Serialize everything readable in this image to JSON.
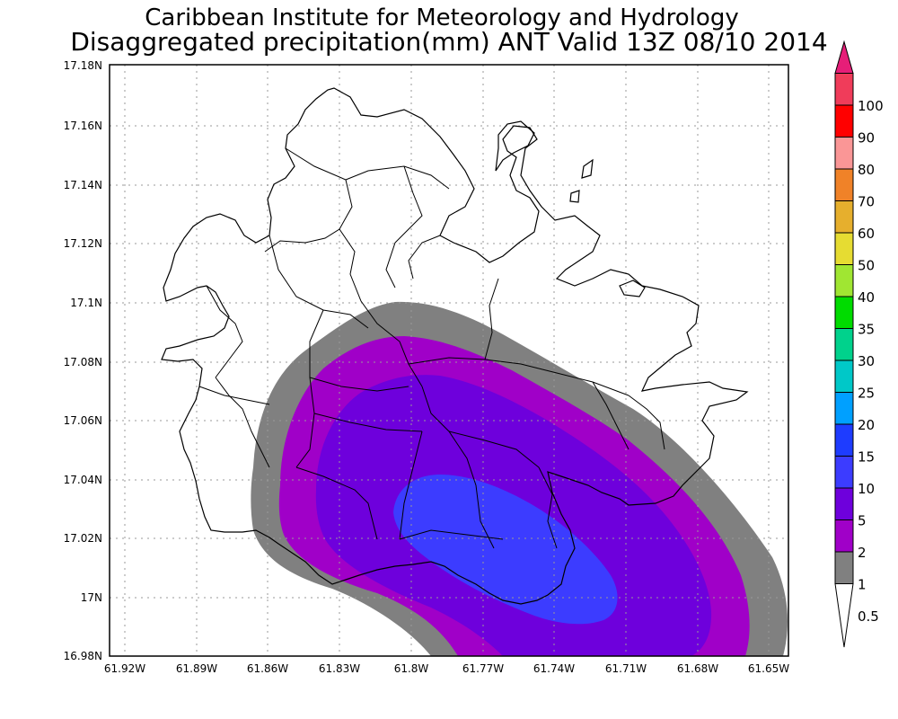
{
  "header": {
    "institute": "Caribbean Institute for Meteorology and Hydrology",
    "product": "Disaggregated precipitation(mm) ANT Valid 13Z 08/10 2014"
  },
  "map": {
    "lat_labels": [
      "17.18N",
      "17.16N",
      "17.14N",
      "17.12N",
      "17.1N",
      "17.08N",
      "17.06N",
      "17.04N",
      "17.02N",
      "17N",
      "16.98N"
    ],
    "lon_labels": [
      "61.92W",
      "61.89W",
      "61.86W",
      "61.83W",
      "61.8W",
      "61.77W",
      "61.74W",
      "61.71W",
      "61.68W",
      "61.65W"
    ],
    "lat_range": [
      16.98,
      17.18
    ],
    "lon_range": [
      -61.925,
      -61.64
    ],
    "grid": "dotted"
  },
  "colorbar": {
    "levels": [
      {
        "label": "0.5",
        "color": "#ffffff"
      },
      {
        "label": "1",
        "color": "#808080"
      },
      {
        "label": "2",
        "color": "#a000c8"
      },
      {
        "label": "5",
        "color": "#6e00dc"
      },
      {
        "label": "10",
        "color": "#3c3cff"
      },
      {
        "label": "15",
        "color": "#1e3cff"
      },
      {
        "label": "20",
        "color": "#00a0ff"
      },
      {
        "label": "25",
        "color": "#00c8c8"
      },
      {
        "label": "30",
        "color": "#00d28c"
      },
      {
        "label": "35",
        "color": "#00dc00"
      },
      {
        "label": "40",
        "color": "#a0e632"
      },
      {
        "label": "50",
        "color": "#e6dc32"
      },
      {
        "label": "60",
        "color": "#e6af2d"
      },
      {
        "label": "70",
        "color": "#f08228"
      },
      {
        "label": "80",
        "color": "#fa9696"
      },
      {
        "label": "90",
        "color": "#ff0000"
      },
      {
        "label": "100",
        "color": "#f03c5a"
      }
    ],
    "top_arrow_color": "#e61e78",
    "bottom_arrow_color": "#ffffff"
  }
}
